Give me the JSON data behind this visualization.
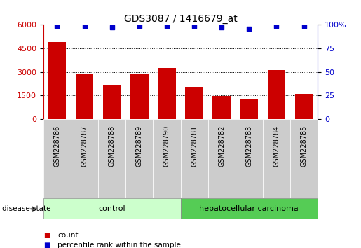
{
  "title": "GDS3087 / 1416679_at",
  "categories": [
    "GSM228786",
    "GSM228787",
    "GSM228788",
    "GSM228789",
    "GSM228790",
    "GSM228781",
    "GSM228782",
    "GSM228783",
    "GSM228784",
    "GSM228785"
  ],
  "bar_values": [
    4900,
    2900,
    2200,
    2900,
    3250,
    2050,
    1450,
    1250,
    3100,
    1600
  ],
  "percentile_values": [
    99,
    99,
    97,
    99,
    99,
    99,
    97,
    96,
    99,
    99
  ],
  "bar_color": "#cc0000",
  "percentile_color": "#0000cc",
  "ylim_left": [
    0,
    6000
  ],
  "ylim_right": [
    0,
    100
  ],
  "yticks_left": [
    0,
    1500,
    3000,
    4500,
    6000
  ],
  "yticks_right": [
    0,
    25,
    50,
    75,
    100
  ],
  "groups": [
    {
      "label": "control",
      "indices": [
        0,
        1,
        2,
        3,
        4
      ],
      "color": "#ccffcc"
    },
    {
      "label": "hepatocellular carcinoma",
      "indices": [
        5,
        6,
        7,
        8,
        9
      ],
      "color": "#55cc55"
    }
  ],
  "disease_state_label": "disease state",
  "legend_count_label": "count",
  "legend_percentile_label": "percentile rank within the sample",
  "bg_color": "#ffffff",
  "tick_area_color": "#cccccc",
  "title_fontsize": 10,
  "tick_fontsize": 8,
  "label_fontsize": 8
}
